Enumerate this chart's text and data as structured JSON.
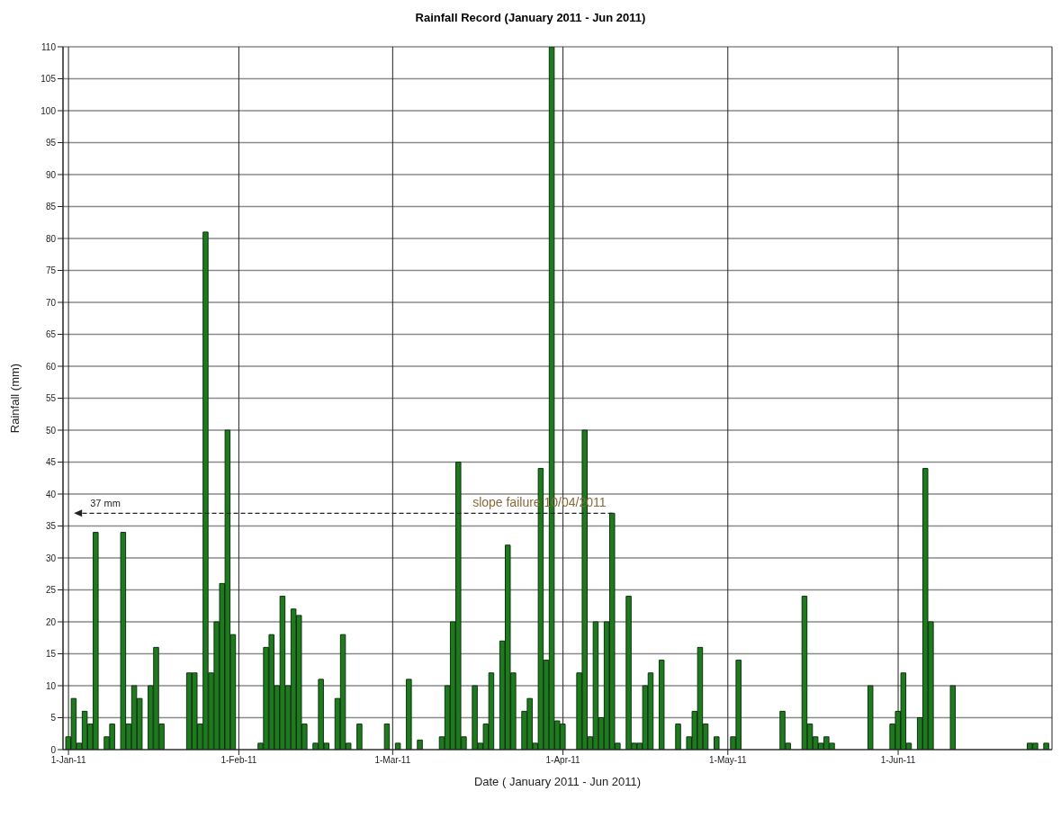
{
  "chart_data": {
    "type": "bar",
    "title": "Rainfall Record (January 2011 - Jun 2011)",
    "xlabel": "Date ( January 2011 - Jun 2011)",
    "ylabel": "Rainfall (mm)",
    "x": [
      "2011-01-01",
      "2011-01-02",
      "2011-01-03",
      "2011-01-04",
      "2011-01-05",
      "2011-01-06",
      "2011-01-07",
      "2011-01-08",
      "2011-01-09",
      "2011-01-10",
      "2011-01-11",
      "2011-01-12",
      "2011-01-13",
      "2011-01-14",
      "2011-01-15",
      "2011-01-16",
      "2011-01-17",
      "2011-01-18",
      "2011-01-19",
      "2011-01-20",
      "2011-01-21",
      "2011-01-22",
      "2011-01-23",
      "2011-01-24",
      "2011-01-25",
      "2011-01-26",
      "2011-01-27",
      "2011-01-28",
      "2011-01-29",
      "2011-01-30",
      "2011-01-31",
      "2011-02-01",
      "2011-02-02",
      "2011-02-03",
      "2011-02-04",
      "2011-02-05",
      "2011-02-06",
      "2011-02-07",
      "2011-02-08",
      "2011-02-09",
      "2011-02-10",
      "2011-02-11",
      "2011-02-12",
      "2011-02-13",
      "2011-02-14",
      "2011-02-15",
      "2011-02-16",
      "2011-02-17",
      "2011-02-18",
      "2011-02-19",
      "2011-02-20",
      "2011-02-21",
      "2011-02-22",
      "2011-02-23",
      "2011-02-24",
      "2011-02-25",
      "2011-02-26",
      "2011-02-27",
      "2011-02-28",
      "2011-03-01",
      "2011-03-02",
      "2011-03-03",
      "2011-03-04",
      "2011-03-05",
      "2011-03-06",
      "2011-03-07",
      "2011-03-08",
      "2011-03-09",
      "2011-03-10",
      "2011-03-11",
      "2011-03-12",
      "2011-03-13",
      "2011-03-14",
      "2011-03-15",
      "2011-03-16",
      "2011-03-17",
      "2011-03-18",
      "2011-03-19",
      "2011-03-20",
      "2011-03-21",
      "2011-03-22",
      "2011-03-23",
      "2011-03-24",
      "2011-03-25",
      "2011-03-26",
      "2011-03-27",
      "2011-03-28",
      "2011-03-29",
      "2011-03-30",
      "2011-03-31",
      "2011-04-01",
      "2011-04-02",
      "2011-04-03",
      "2011-04-04",
      "2011-04-05",
      "2011-04-06",
      "2011-04-07",
      "2011-04-08",
      "2011-04-09",
      "2011-04-10",
      "2011-04-11",
      "2011-04-12",
      "2011-04-13",
      "2011-04-14",
      "2011-04-15",
      "2011-04-16",
      "2011-04-17",
      "2011-04-18",
      "2011-04-19",
      "2011-04-20",
      "2011-04-21",
      "2011-04-22",
      "2011-04-23",
      "2011-04-24",
      "2011-04-25",
      "2011-04-26",
      "2011-04-27",
      "2011-04-28",
      "2011-04-29",
      "2011-04-30",
      "2011-05-01",
      "2011-05-02",
      "2011-05-03",
      "2011-05-04",
      "2011-05-05",
      "2011-05-06",
      "2011-05-07",
      "2011-05-08",
      "2011-05-09",
      "2011-05-10",
      "2011-05-11",
      "2011-05-12",
      "2011-05-13",
      "2011-05-14",
      "2011-05-15",
      "2011-05-16",
      "2011-05-17",
      "2011-05-18",
      "2011-05-19",
      "2011-05-20",
      "2011-05-21",
      "2011-05-22",
      "2011-05-23",
      "2011-05-24",
      "2011-05-25",
      "2011-05-26",
      "2011-05-27",
      "2011-05-28",
      "2011-05-29",
      "2011-05-30",
      "2011-05-31",
      "2011-06-01",
      "2011-06-02",
      "2011-06-03",
      "2011-06-04",
      "2011-06-05",
      "2011-06-06",
      "2011-06-07",
      "2011-06-08",
      "2011-06-09",
      "2011-06-10",
      "2011-06-11",
      "2011-06-12",
      "2011-06-13",
      "2011-06-14",
      "2011-06-15",
      "2011-06-16",
      "2011-06-17",
      "2011-06-18",
      "2011-06-19",
      "2011-06-20",
      "2011-06-21",
      "2011-06-22",
      "2011-06-23",
      "2011-06-24",
      "2011-06-25",
      "2011-06-26",
      "2011-06-27",
      "2011-06-28"
    ],
    "values": [
      2,
      8,
      1,
      6,
      4,
      34,
      0,
      2,
      4,
      0,
      34,
      4,
      10,
      8,
      0,
      10,
      16,
      4,
      0,
      0,
      0,
      0,
      12,
      12,
      4,
      81,
      12,
      20,
      26,
      50,
      18,
      0,
      0,
      0,
      0,
      1,
      16,
      18,
      10,
      24,
      10,
      22,
      21,
      4,
      0,
      1,
      11,
      1,
      0,
      8,
      18,
      1,
      0,
      4,
      0,
      0,
      0,
      0,
      4,
      0,
      1,
      0,
      11,
      0,
      1.5,
      0,
      0,
      0,
      2,
      10,
      20,
      45,
      2,
      0,
      10,
      1,
      4,
      12,
      0,
      17,
      32,
      12,
      0,
      6,
      8,
      1,
      44,
      14,
      110,
      4.5,
      4,
      0,
      0,
      12,
      50,
      2,
      20,
      5,
      20,
      37,
      1,
      0,
      24,
      1,
      1,
      10,
      12,
      0,
      14,
      0,
      0,
      4,
      0,
      2,
      6,
      16,
      4,
      0,
      2,
      0,
      0,
      2,
      14,
      0,
      0,
      0,
      0,
      0,
      0,
      0,
      6,
      1,
      0,
      0,
      24,
      4,
      2,
      1,
      2,
      1,
      0,
      0,
      0,
      0,
      0,
      0,
      10,
      0,
      0,
      0,
      4,
      6,
      12,
      1,
      0,
      5,
      44,
      20,
      0,
      0,
      0,
      10,
      0,
      0,
      0,
      0,
      0,
      0,
      0,
      0,
      0,
      0,
      0,
      0,
      0,
      1,
      1,
      0,
      1
    ],
    "color": "#1f7a1f",
    "xlim": [
      "2010-12-31",
      "2011-06-29"
    ],
    "xticks": [
      {
        "value": "2011-01-01",
        "label": "1-Jan-11"
      },
      {
        "value": "2011-02-01",
        "label": "1-Feb-11"
      },
      {
        "value": "2011-03-01",
        "label": "1-Mar-11"
      },
      {
        "value": "2011-04-01",
        "label": "1-Apr-11"
      },
      {
        "value": "2011-05-01",
        "label": "1-May-11"
      },
      {
        "value": "2011-06-01",
        "label": "1-Jun-11"
      }
    ],
    "ylim": [
      0,
      110
    ],
    "yticks": [
      0,
      5,
      10,
      15,
      20,
      25,
      30,
      35,
      40,
      45,
      50,
      55,
      60,
      65,
      70,
      75,
      80,
      85,
      90,
      95,
      100,
      105,
      110
    ],
    "grid": true,
    "ref_lines": [
      {
        "axis": "y",
        "value": 37,
        "label": "37 mm",
        "line_style": "dashed"
      }
    ],
    "annotations": [
      {
        "text": "slope failure 10/04/2011",
        "x": "2011-04-10",
        "y": 37
      }
    ]
  }
}
